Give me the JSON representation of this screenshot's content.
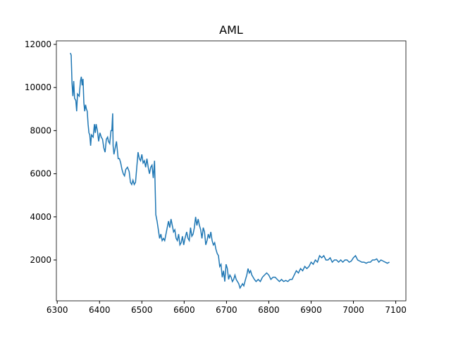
{
  "chart_data": {
    "type": "line",
    "title": "AML",
    "series": [
      {
        "color": "#1f77b4",
        "x": [
          6331,
          6333,
          6335,
          6337,
          6339,
          6341,
          6344,
          6346,
          6348,
          6352,
          6355,
          6357,
          6359,
          6361,
          6363,
          6365,
          6367,
          6369,
          6371,
          6373,
          6375,
          6377,
          6379,
          6381,
          6385,
          6388,
          6390,
          6392,
          6395,
          6398,
          6401,
          6404,
          6407,
          6410,
          6413,
          6416,
          6419,
          6421,
          6424,
          6427,
          6429,
          6431,
          6432,
          6434,
          6437,
          6440,
          6442,
          6444,
          6447,
          6450,
          6453,
          6456,
          6459,
          6462,
          6466,
          6470,
          6473,
          6476,
          6479,
          6482,
          6485,
          6488,
          6491,
          6494,
          6497,
          6500,
          6503,
          6506,
          6509,
          6512,
          6515,
          6518,
          6521,
          6524,
          6527,
          6530,
          6533,
          6536,
          6539,
          6542,
          6545,
          6548,
          6551,
          6554,
          6557,
          6560,
          6563,
          6566,
          6569,
          6572,
          6575,
          6578,
          6581,
          6584,
          6587,
          6590,
          6593,
          6596,
          6599,
          6602,
          6606,
          6609,
          6612,
          6615,
          6618,
          6621,
          6624,
          6627,
          6630,
          6633,
          6636,
          6639,
          6642,
          6645,
          6648,
          6651,
          6654,
          6657,
          6660,
          6663,
          6666,
          6669,
          6672,
          6675,
          6678,
          6681,
          6684,
          6687,
          6690,
          6693,
          6696,
          6699,
          6702,
          6705,
          6708,
          6711,
          6714,
          6717,
          6720,
          6723,
          6726,
          6729,
          6732,
          6735,
          6738,
          6741,
          6745,
          6748,
          6751,
          6754,
          6757,
          6760,
          6763,
          6766,
          6770,
          6775,
          6780,
          6785,
          6790,
          6795,
          6800,
          6805,
          6810,
          6815,
          6820,
          6825,
          6830,
          6835,
          6840,
          6845,
          6850,
          6855,
          6860,
          6865,
          6870,
          6875,
          6880,
          6885,
          6890,
          6895,
          6900,
          6905,
          6910,
          6915,
          6920,
          6925,
          6930,
          6935,
          6940,
          6945,
          6950,
          6955,
          6960,
          6965,
          6970,
          6975,
          6980,
          6985,
          6990,
          6995,
          7000,
          7005,
          7010,
          7015,
          7020,
          7025,
          7030,
          7035,
          7040,
          7045,
          7050,
          7055,
          7060,
          7065,
          7070,
          7075,
          7080,
          7085
        ],
        "values": [
          11600,
          11500,
          10200,
          9600,
          10300,
          9500,
          9400,
          8900,
          9700,
          9600,
          10300,
          10500,
          10100,
          10400,
          9300,
          8900,
          9200,
          9000,
          8900,
          8300,
          7900,
          7800,
          7300,
          7800,
          7700,
          8300,
          7900,
          8300,
          8000,
          7500,
          7900,
          7700,
          7600,
          7200,
          7000,
          7600,
          7700,
          7500,
          7400,
          8000,
          8000,
          8800,
          7300,
          6900,
          7200,
          7500,
          7100,
          6700,
          6700,
          6500,
          6200,
          6000,
          5900,
          6200,
          6300,
          6100,
          5600,
          5500,
          5700,
          5500,
          5600,
          6300,
          7000,
          6700,
          6600,
          6900,
          6500,
          6600,
          6300,
          6700,
          6300,
          6000,
          6300,
          6400,
          5800,
          6600,
          4100,
          3800,
          3400,
          3000,
          3200,
          2900,
          3000,
          2900,
          3200,
          3500,
          3800,
          3500,
          3900,
          3600,
          3300,
          3400,
          3000,
          2900,
          3200,
          2700,
          2800,
          3100,
          2700,
          3000,
          3300,
          3000,
          2900,
          3500,
          3100,
          3200,
          3500,
          4000,
          3600,
          3900,
          3600,
          3400,
          3000,
          3500,
          3300,
          2700,
          2900,
          3200,
          3000,
          3300,
          2900,
          2700,
          2800,
          2500,
          2300,
          2200,
          1700,
          1800,
          1200,
          1500,
          1000,
          1800,
          1600,
          1100,
          1300,
          1200,
          1000,
          1100,
          1300,
          1100,
          1000,
          900,
          700,
          800,
          900,
          800,
          1100,
          1300,
          1600,
          1400,
          1500,
          1300,
          1200,
          1100,
          1000,
          1100,
          1000,
          1200,
          1300,
          1400,
          1300,
          1100,
          1200,
          1200,
          1100,
          1000,
          1100,
          1000,
          1050,
          1000,
          1100,
          1100,
          1300,
          1500,
          1400,
          1600,
          1500,
          1700,
          1600,
          1700,
          1900,
          1800,
          2000,
          1900,
          2200,
          2100,
          2200,
          2000,
          2000,
          2100,
          1900,
          2000,
          2000,
          1900,
          2000,
          1900,
          2000,
          2000,
          1900,
          1950,
          2100,
          2200,
          2000,
          1950,
          1900,
          1900,
          1850,
          1900,
          1900,
          2000,
          2000,
          2050,
          1900,
          2000,
          1950,
          1900,
          1850,
          1900
        ]
      }
    ],
    "xlim": [
      6298,
      7124
    ],
    "ylim": [
      105,
      12163
    ],
    "xticks": [
      6300,
      6400,
      6500,
      6600,
      6700,
      6800,
      6900,
      7000,
      7100
    ],
    "yticks": [
      2000,
      4000,
      6000,
      8000,
      10000,
      12000
    ]
  }
}
